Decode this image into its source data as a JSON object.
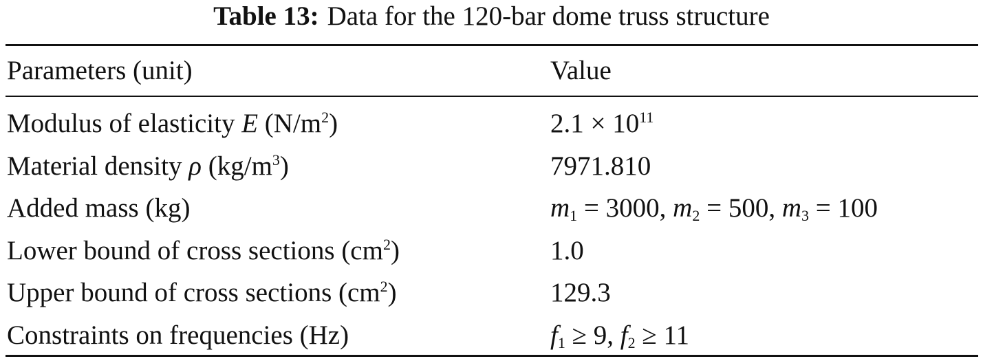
{
  "caption": {
    "label": "Table 13:",
    "text": "Data for the 120-bar dome truss structure"
  },
  "table": {
    "header": [
      "Parameters (unit)",
      "Value"
    ],
    "rows": [
      [
        [
          "Modulus of elasticity ",
          "E",
          " (N/m",
          "2",
          ")"
        ],
        [
          "2.1 × 10",
          "11"
        ]
      ],
      [
        [
          "Material density ",
          "ρ",
          " (kg/m",
          "3",
          ")"
        ],
        [
          "7971.810"
        ]
      ],
      [
        [
          "Added mass (kg)"
        ],
        [
          "m",
          "1",
          " = 3000, ",
          "m",
          "2",
          " = 500, ",
          "m",
          "3",
          " = 100"
        ]
      ],
      [
        [
          "Lower bound of cross sections (cm",
          "2",
          ")"
        ],
        [
          "1.0"
        ]
      ],
      [
        [
          "Upper bound of cross sections (cm",
          "2",
          ")"
        ],
        [
          "129.3"
        ]
      ],
      [
        [
          "Constraints on frequencies (Hz)"
        ],
        [
          "f",
          "1",
          " ≥ 9, ",
          "f",
          "2",
          " ≥ 11"
        ]
      ]
    ]
  }
}
